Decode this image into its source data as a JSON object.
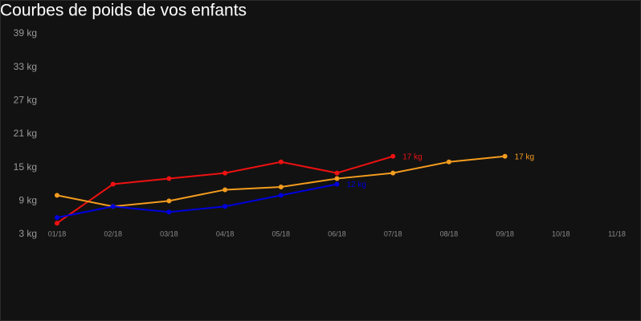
{
  "chart_data": {
    "type": "line",
    "title": "Courbes de poids de vos enfants",
    "categories": [
      "01/18",
      "02/18",
      "03/18",
      "04/18",
      "05/18",
      "06/18",
      "07/18",
      "08/18",
      "09/18",
      "10/18",
      "11/18"
    ],
    "series": [
      {
        "color": "#ee1111",
        "values": [
          5,
          12,
          13,
          14,
          16,
          14,
          17,
          null,
          null,
          null,
          null
        ],
        "value_labels": [
          null,
          null,
          null,
          null,
          null,
          null,
          "17 kg",
          null,
          null,
          null,
          null
        ]
      },
      {
        "color": "#f39c1e",
        "values": [
          10,
          8,
          9,
          11,
          11.5,
          13,
          14,
          16,
          17,
          null,
          null
        ],
        "value_labels": [
          null,
          null,
          null,
          null,
          null,
          null,
          null,
          null,
          "17 kg",
          null,
          null
        ]
      },
      {
        "color": "#0000dd",
        "values": [
          6,
          8,
          7,
          8,
          10,
          12,
          null,
          null,
          null,
          null,
          null
        ],
        "value_labels": [
          null,
          null,
          null,
          null,
          null,
          "12 kg",
          null,
          null,
          null,
          null,
          null
        ]
      }
    ],
    "ylim": [
      3,
      39
    ],
    "yticks": [
      {
        "value": 3,
        "label": "3 kg"
      },
      {
        "value": 9,
        "label": "9 kg"
      },
      {
        "value": 15,
        "label": "15 kg"
      },
      {
        "value": 21,
        "label": "21 kg"
      },
      {
        "value": 27,
        "label": "27 kg"
      },
      {
        "value": 33,
        "label": "33 kg"
      },
      {
        "value": 39,
        "label": "39 kg"
      }
    ],
    "grid": false
  }
}
